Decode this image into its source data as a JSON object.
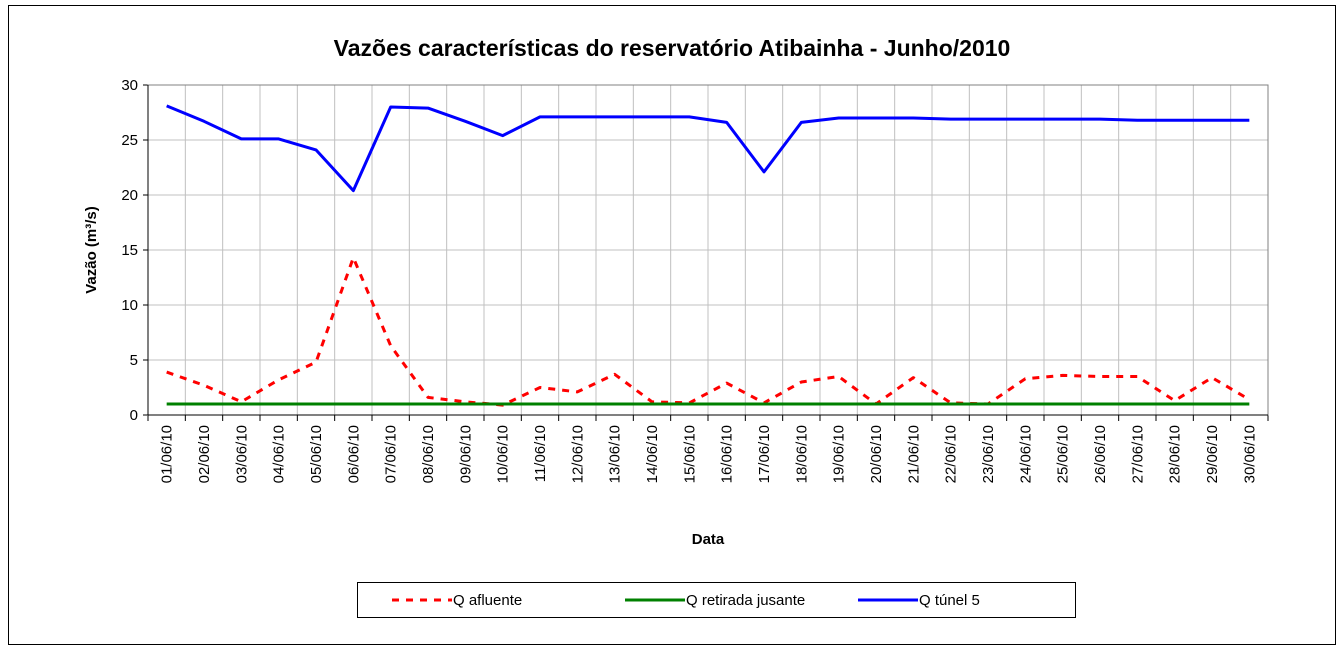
{
  "chart_data": {
    "type": "line",
    "title": "Vazões características do reservatório Atibainha - Junho/2010",
    "x_label": "Data",
    "y_label": "Vazão (m³/s)",
    "categories": [
      "01/06/10",
      "02/06/10",
      "03/06/10",
      "04/06/10",
      "05/06/10",
      "06/06/10",
      "07/06/10",
      "08/06/10",
      "09/06/10",
      "10/06/10",
      "11/06/10",
      "12/06/10",
      "13/06/10",
      "14/06/10",
      "15/06/10",
      "16/06/10",
      "17/06/10",
      "18/06/10",
      "19/06/10",
      "20/06/10",
      "21/06/10",
      "22/06/10",
      "23/06/10",
      "24/06/10",
      "25/06/10",
      "26/06/10",
      "27/06/10",
      "28/06/10",
      "29/06/10",
      "30/06/10"
    ],
    "series": [
      {
        "name": "Q afluente",
        "color": "#ff0000",
        "dashed": true,
        "values": [
          3.9,
          2.7,
          1.2,
          3.2,
          4.8,
          14.3,
          6.3,
          1.6,
          1.2,
          0.9,
          2.5,
          2.1,
          3.7,
          1.2,
          1.1,
          2.9,
          1.1,
          3.0,
          3.5,
          1.0,
          3.4,
          1.1,
          1.0,
          3.3,
          3.6,
          3.5,
          3.5,
          1.3,
          3.4,
          1.4
        ]
      },
      {
        "name": "Q retirada jusante",
        "color": "#008000",
        "dashed": false,
        "values": [
          1,
          1,
          1,
          1,
          1,
          1,
          1,
          1,
          1,
          1,
          1,
          1,
          1,
          1,
          1,
          1,
          1,
          1,
          1,
          1,
          1,
          1,
          1,
          1,
          1,
          1,
          1,
          1,
          1,
          1
        ]
      },
      {
        "name": "Q túnel 5",
        "color": "#0000ff",
        "dashed": false,
        "values": [
          28.1,
          26.7,
          25.1,
          25.1,
          24.1,
          20.4,
          28.0,
          27.9,
          26.7,
          25.4,
          27.1,
          27.1,
          27.1,
          27.1,
          27.1,
          26.6,
          22.1,
          26.6,
          27.0,
          27.0,
          27.0,
          26.9,
          26.9,
          26.9,
          26.9,
          26.9,
          26.8,
          26.8,
          26.8,
          26.8
        ]
      }
    ],
    "ylim": [
      0,
      30
    ],
    "yticks": [
      0,
      5,
      10,
      15,
      20,
      25,
      30
    ],
    "grid": true
  }
}
